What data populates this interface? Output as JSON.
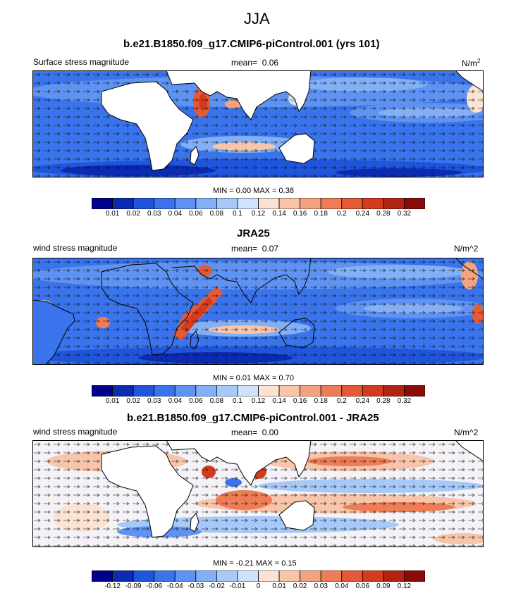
{
  "main_title": "JJA",
  "panels": [
    {
      "title": "b.e21.B1850.f09_g17.CMIP6-piControl.001 (yrs 101)",
      "left_label": "Surface stress magnitude",
      "mean_label": "mean=",
      "mean_value": "0.06",
      "units": "N/m",
      "units_sup": "2",
      "min_max": "MIN =  0.00 MAX =  0.38"
    },
    {
      "title": "JRA25",
      "left_label": "wind stress magnitude",
      "mean_label": "mean=",
      "mean_value": "0.07",
      "units": "N/m^2",
      "units_sup": "",
      "min_max": "MIN =  0.01 MAX =  0.70"
    },
    {
      "title": "b.e21.B1850.f09_g17.CMIP6-piControl.001 - JRA25",
      "left_label": "wind stress magnitude",
      "mean_label": "mean=",
      "mean_value": "0.00",
      "units": "N/m^2",
      "units_sup": "",
      "min_max": "MIN = -0.21 MAX =  0.15"
    }
  ],
  "colorbars": [
    {
      "colors": [
        "#00008a",
        "#0a2bb2",
        "#1f55dc",
        "#3a74ec",
        "#5e92f3",
        "#82aff6",
        "#a6c9f8",
        "#d0e3fa",
        "#fbe2d3",
        "#f8c5aa",
        "#f4a380",
        "#ee7d57",
        "#e65935",
        "#d43a1e",
        "#b32312",
        "#8a0b08"
      ],
      "ticks": [
        "0.01",
        "0.02",
        "0.03",
        "0.04",
        "0.06",
        "0.08",
        "0.1",
        "0.12",
        "0.14",
        "0.16",
        "0.18",
        "0.2",
        "0.24",
        "0.28",
        "0.32"
      ]
    },
    {
      "colors": [
        "#00008a",
        "#0a2bb2",
        "#1f55dc",
        "#3a74ec",
        "#5e92f3",
        "#82aff6",
        "#a6c9f8",
        "#d0e3fa",
        "#fbe2d3",
        "#f8c5aa",
        "#f4a380",
        "#ee7d57",
        "#e65935",
        "#d43a1e",
        "#b32312",
        "#8a0b08"
      ],
      "ticks": [
        "0.01",
        "0.02",
        "0.03",
        "0.04",
        "0.06",
        "0.08",
        "0.1",
        "0.12",
        "0.14",
        "0.16",
        "0.18",
        "0.2",
        "0.24",
        "0.28",
        "0.32"
      ]
    },
    {
      "colors": [
        "#00008a",
        "#0a2bb2",
        "#1f55dc",
        "#3a74ec",
        "#5e92f3",
        "#82aff6",
        "#a6c9f8",
        "#d0e3fa",
        "#fbe2d3",
        "#f8c5aa",
        "#f4a380",
        "#ee7d57",
        "#e65935",
        "#d43a1e",
        "#b32312",
        "#8a0b08"
      ],
      "ticks": [
        "-0.12",
        "-0.09",
        "-0.06",
        "-0.04",
        "-0.03",
        "-0.02",
        "-0.01",
        "0",
        "0.01",
        "0.02",
        "0.03",
        "0.04",
        "0.06",
        "0.09",
        "0.12"
      ]
    }
  ],
  "chart_data": [
    {
      "type": "heatmap",
      "title": "b.e21.B1850.f09_g17.CMIP6-piControl.001 (yrs 101)",
      "field": "Surface stress magnitude",
      "units": "N/m2",
      "mean": 0.06,
      "min": 0.0,
      "max": 0.38,
      "contour_levels": [
        0.01,
        0.02,
        0.03,
        0.04,
        0.06,
        0.08,
        0.1,
        0.12,
        0.14,
        0.16,
        0.18,
        0.2,
        0.24,
        0.28,
        0.32
      ]
    },
    {
      "type": "heatmap",
      "title": "JRA25",
      "field": "wind stress magnitude",
      "units": "N/m^2",
      "mean": 0.07,
      "min": 0.01,
      "max": 0.7,
      "contour_levels": [
        0.01,
        0.02,
        0.03,
        0.04,
        0.06,
        0.08,
        0.1,
        0.12,
        0.14,
        0.16,
        0.18,
        0.2,
        0.24,
        0.28,
        0.32
      ]
    },
    {
      "type": "heatmap",
      "title": "b.e21.B1850.f09_g17.CMIP6-piControl.001 - JRA25",
      "field": "wind stress magnitude",
      "units": "N/m^2",
      "mean": 0.0,
      "min": -0.21,
      "max": 0.15,
      "contour_levels": [
        -0.12,
        -0.09,
        -0.06,
        -0.04,
        -0.03,
        -0.02,
        -0.01,
        0,
        0.01,
        0.02,
        0.03,
        0.04,
        0.06,
        0.09,
        0.12
      ]
    }
  ]
}
